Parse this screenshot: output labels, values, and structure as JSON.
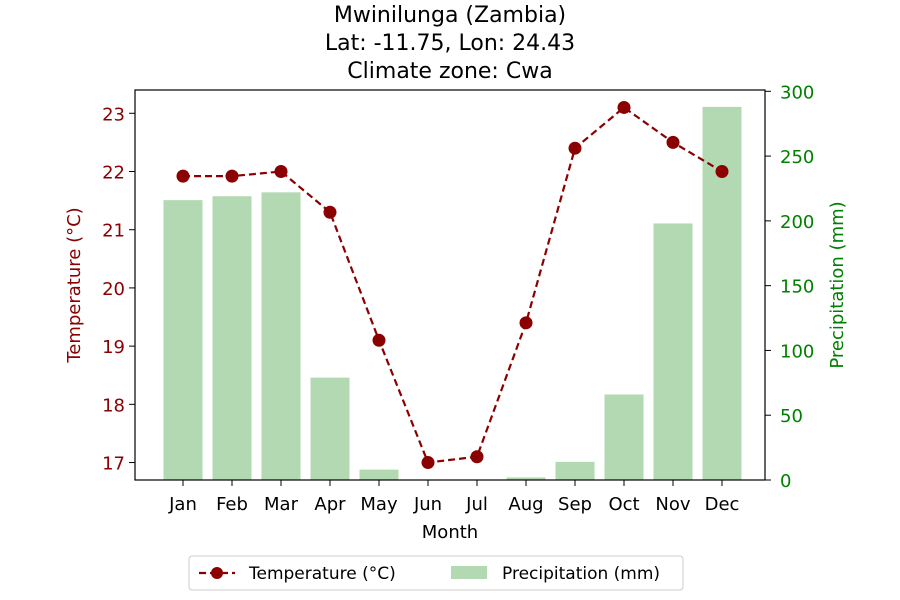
{
  "chart_data": {
    "type": "bar+line",
    "title_lines": [
      "Mwinilunga (Zambia)",
      "Lat: -11.75, Lon: 24.43",
      "Climate zone: Cwa"
    ],
    "xlabel": "Month",
    "categories": [
      "Jan",
      "Feb",
      "Mar",
      "Apr",
      "May",
      "Jun",
      "Jul",
      "Aug",
      "Sep",
      "Oct",
      "Nov",
      "Dec"
    ],
    "temperature": {
      "name": "Temperature (°C)",
      "axis_label": "Temperature (°C)",
      "values": [
        21.92,
        21.92,
        22.0,
        21.3,
        19.1,
        17.0,
        17.1,
        19.4,
        22.4,
        23.1,
        22.5,
        22.0
      ],
      "ylim": [
        16.7,
        23.4
      ],
      "ticks": [
        17,
        18,
        19,
        20,
        21,
        22,
        23
      ],
      "color": "#8b0000"
    },
    "precipitation": {
      "name": "Precipitation (mm)",
      "axis_label": "Precipitation (mm)",
      "values": [
        216,
        219,
        222,
        79,
        8,
        0,
        0,
        2,
        14,
        66,
        198,
        288
      ],
      "ylim": [
        0,
        301
      ],
      "ticks": [
        0,
        50,
        100,
        150,
        200,
        250,
        300
      ],
      "color": "#b2d9b2",
      "axis_color": "#008000"
    },
    "legend": {
      "placement": "bottom-center",
      "items": [
        "Temperature (°C)",
        "Precipitation (mm)"
      ]
    }
  }
}
